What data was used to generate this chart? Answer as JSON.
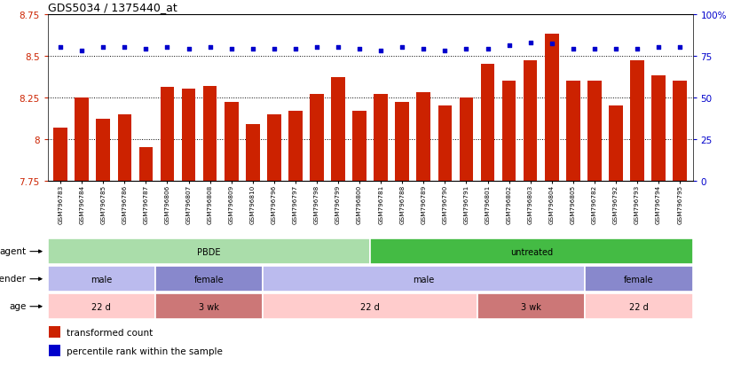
{
  "title": "GDS5034 / 1375440_at",
  "samples": [
    "GSM796783",
    "GSM796784",
    "GSM796785",
    "GSM796786",
    "GSM796787",
    "GSM796806",
    "GSM796807",
    "GSM796808",
    "GSM796809",
    "GSM796810",
    "GSM796796",
    "GSM796797",
    "GSM796798",
    "GSM796799",
    "GSM796800",
    "GSM796781",
    "GSM796788",
    "GSM796789",
    "GSM796790",
    "GSM796791",
    "GSM796801",
    "GSM796802",
    "GSM796803",
    "GSM796804",
    "GSM796805",
    "GSM796782",
    "GSM796792",
    "GSM796793",
    "GSM796794",
    "GSM796795"
  ],
  "bar_values": [
    8.07,
    8.25,
    8.12,
    8.15,
    7.95,
    8.31,
    8.3,
    8.32,
    8.22,
    8.09,
    8.15,
    8.17,
    8.27,
    8.37,
    8.17,
    8.27,
    8.22,
    8.28,
    8.2,
    8.25,
    8.45,
    8.35,
    8.47,
    8.63,
    8.35,
    8.35,
    8.2,
    8.47,
    8.38,
    8.35
  ],
  "percentile_values": [
    80,
    78,
    80,
    80,
    79,
    80,
    79,
    80,
    79,
    79,
    79,
    79,
    80,
    80,
    79,
    78,
    80,
    79,
    78,
    79,
    79,
    81,
    83,
    82,
    79,
    79,
    79,
    79,
    80,
    80
  ],
  "ylim_left": [
    7.75,
    8.75
  ],
  "ylim_right": [
    0,
    100
  ],
  "bar_bottom": 7.75,
  "bar_color": "#cc2200",
  "dot_color": "#0000cc",
  "agent_groups": [
    {
      "label": "PBDE",
      "start": 0,
      "end": 15,
      "color": "#aaddaa"
    },
    {
      "label": "untreated",
      "start": 15,
      "end": 30,
      "color": "#44bb44"
    }
  ],
  "gender_groups": [
    {
      "label": "male",
      "start": 0,
      "end": 5,
      "color": "#bbbbee"
    },
    {
      "label": "female",
      "start": 5,
      "end": 10,
      "color": "#8888cc"
    },
    {
      "label": "male",
      "start": 10,
      "end": 25,
      "color": "#bbbbee"
    },
    {
      "label": "female",
      "start": 25,
      "end": 30,
      "color": "#8888cc"
    }
  ],
  "age_groups": [
    {
      "label": "22 d",
      "start": 0,
      "end": 5,
      "color": "#ffcccc"
    },
    {
      "label": "3 wk",
      "start": 5,
      "end": 10,
      "color": "#cc7777"
    },
    {
      "label": "22 d",
      "start": 10,
      "end": 20,
      "color": "#ffcccc"
    },
    {
      "label": "3 wk",
      "start": 20,
      "end": 25,
      "color": "#cc7777"
    },
    {
      "label": "22 d",
      "start": 25,
      "end": 30,
      "color": "#ffcccc"
    }
  ],
  "legend_items": [
    {
      "color": "#cc2200",
      "label": "transformed count"
    },
    {
      "color": "#0000cc",
      "label": "percentile rank within the sample"
    }
  ],
  "yticks_left": [
    7.75,
    8.0,
    8.25,
    8.5,
    8.75
  ],
  "ytick_labels_left": [
    "7.75",
    "8",
    "8.25",
    "8.5",
    "8.75"
  ],
  "yticks_right": [
    0,
    25,
    50,
    75,
    100
  ],
  "ytick_labels_right": [
    "0",
    "25",
    "50",
    "75",
    "100%"
  ],
  "hlines": [
    8.0,
    8.25,
    8.5
  ],
  "bar_width": 0.65
}
